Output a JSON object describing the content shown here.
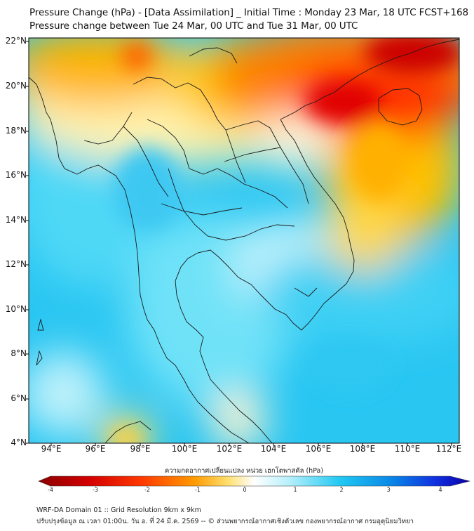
{
  "header": {
    "title_line1": "Pressure Change (hPa) - [Data Assimilation] _ Initial Time : Monday 23 Mar, 18 UTC FCST+168",
    "title_line2": "Pressure change between Tue 24 Mar, 00 UTC and Tue 31 Mar, 00 UTC"
  },
  "map": {
    "lat_labels": [
      "22°N",
      "20°N",
      "18°N",
      "16°N",
      "14°N",
      "12°N",
      "10°N",
      "8°N",
      "6°N",
      "4°N"
    ],
    "lon_labels": [
      "94°E",
      "96°E",
      "98°E",
      "100°E",
      "102°E",
      "104°E",
      "106°E",
      "108°E",
      "110°E",
      "112°E"
    ]
  },
  "colorbar": {
    "title": "ความกดอากาศเปลี่ยนแปลง หน่วย เฮกโตพาสคัล (hPa)",
    "ticks": [
      "-4",
      "-3",
      "-2",
      "-1",
      "0",
      "1",
      "2",
      "3",
      "4"
    ],
    "colors": {
      "strong_negative": "#8b0000",
      "negative": "#ff2a00",
      "mild_negative": "#ffd000",
      "zero": "#ffffff",
      "mild_positive": "#7fe0f5",
      "positive": "#12b8ee",
      "strong_positive": "#0a00a8"
    }
  },
  "footer": {
    "line1": "WRF-DA Domain 01 :: Grid Resolution 9km x 9km",
    "line2": "ปรับปรุงข้อมูล ณ เวลา 01:00น. วัน อ. ที่ 24 มี.ค. 2569 -- © ส่วนพยากรณ์อากาศเชิงตัวเลข กองพยากรณ์อากาศ กรมอุตุนิยมวิทยา"
  }
}
